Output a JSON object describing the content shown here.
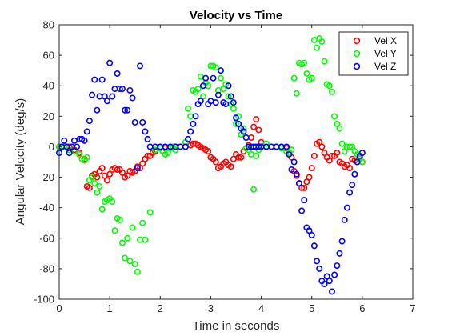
{
  "chart_data": {
    "type": "scatter",
    "title": "Velocity vs Time",
    "xlabel": "Time in seconds",
    "ylabel": "Angular Velocity (deg/s)",
    "xlim": [
      0,
      7
    ],
    "ylim": [
      -100,
      80
    ],
    "xticks": [
      0,
      1,
      2,
      3,
      4,
      5,
      6,
      7
    ],
    "yticks": [
      -100,
      -80,
      -60,
      -40,
      -20,
      0,
      20,
      40,
      60,
      80
    ],
    "grid": false,
    "legend_position": "top-right",
    "marker": "circle",
    "series": [
      {
        "name": "Vel X",
        "color": "#ff0000",
        "x": [
          0.0,
          0.1,
          0.2,
          0.3,
          0.4,
          0.5,
          0.55,
          0.6,
          0.65,
          0.7,
          0.75,
          0.8,
          0.85,
          0.9,
          0.95,
          1.0,
          1.05,
          1.1,
          1.15,
          1.2,
          1.25,
          1.3,
          1.35,
          1.4,
          1.45,
          1.5,
          1.55,
          1.6,
          1.65,
          1.7,
          1.75,
          1.8,
          1.85,
          1.9,
          2.0,
          2.1,
          2.2,
          2.3,
          2.4,
          2.5,
          2.6,
          2.65,
          2.7,
          2.75,
          2.8,
          2.85,
          2.9,
          2.95,
          3.0,
          3.05,
          3.1,
          3.15,
          3.2,
          3.25,
          3.3,
          3.35,
          3.4,
          3.45,
          3.5,
          3.55,
          3.6,
          3.65,
          3.7,
          3.75,
          3.8,
          3.85,
          3.9,
          3.95,
          4.0,
          4.1,
          4.2,
          4.3,
          4.4,
          4.5,
          4.55,
          4.6,
          4.65,
          4.7,
          4.75,
          4.8,
          4.85,
          4.9,
          4.95,
          5.0,
          5.05,
          5.1,
          5.15,
          5.2,
          5.25,
          5.3,
          5.35,
          5.4,
          5.45,
          5.5,
          5.55,
          5.6,
          5.65,
          5.7,
          5.75,
          5.8,
          5.85,
          5.9,
          5.95,
          6.0
        ],
        "y": [
          0,
          0,
          0,
          -2,
          -4,
          -8,
          -26,
          -27,
          -19,
          -18,
          -20,
          -16,
          -14,
          -19,
          -22,
          -18,
          -15,
          -14,
          -15,
          -15,
          -17,
          -20,
          -19,
          -16,
          -17,
          -16,
          -13,
          -14,
          -11,
          -8,
          -6,
          -6,
          -4,
          -3,
          -1,
          -1,
          0,
          0,
          0,
          0,
          1,
          2,
          2,
          1,
          0,
          -1,
          -2,
          -3,
          -7,
          -8,
          -10,
          -14,
          -13,
          -11,
          -10,
          -12,
          -13,
          -8,
          -5,
          -7,
          -7,
          -3,
          -1,
          1,
          6,
          13,
          18,
          11,
          3,
          0,
          0,
          0,
          0,
          -1,
          -4,
          -7,
          -16,
          -19,
          -24,
          -27,
          -27,
          -23,
          -20,
          -14,
          -6,
          2,
          3,
          0,
          -4,
          -7,
          -9,
          -6,
          -6,
          -4,
          -10,
          -11,
          -13,
          -12,
          -14,
          -8,
          -9,
          -10,
          -7,
          -10
        ]
      },
      {
        "name": "Vel Y",
        "color": "#00ff00",
        "x": [
          0.0,
          0.1,
          0.2,
          0.3,
          0.4,
          0.45,
          0.5,
          0.55,
          0.6,
          0.65,
          0.7,
          0.75,
          0.8,
          0.85,
          0.9,
          0.95,
          1.0,
          1.05,
          1.1,
          1.15,
          1.2,
          1.25,
          1.3,
          1.35,
          1.4,
          1.45,
          1.5,
          1.55,
          1.6,
          1.65,
          1.7,
          1.8,
          1.9,
          2.0,
          2.05,
          2.1,
          2.15,
          2.2,
          2.25,
          2.3,
          2.4,
          2.5,
          2.55,
          2.6,
          2.65,
          2.7,
          2.75,
          2.8,
          2.85,
          2.9,
          2.95,
          3.0,
          3.05,
          3.1,
          3.15,
          3.2,
          3.25,
          3.3,
          3.35,
          3.4,
          3.45,
          3.5,
          3.55,
          3.6,
          3.65,
          3.7,
          3.75,
          3.8,
          3.85,
          3.9,
          3.95,
          4.0,
          4.1,
          4.2,
          4.3,
          4.4,
          4.5,
          4.55,
          4.6,
          4.65,
          4.7,
          4.75,
          4.8,
          4.85,
          4.9,
          4.95,
          5.0,
          5.05,
          5.1,
          5.15,
          5.2,
          5.25,
          5.3,
          5.35,
          5.4,
          5.45,
          5.5,
          5.55,
          5.6,
          5.65,
          5.7,
          5.75,
          5.8,
          5.85,
          5.9,
          5.95,
          6.0
        ],
        "y": [
          0,
          0,
          -2,
          -3,
          -5,
          -8,
          -9,
          -7,
          -22,
          -20,
          -24,
          -30,
          -26,
          -41,
          -36,
          -35,
          -34,
          -36,
          -55,
          -47,
          -48,
          -63,
          -73,
          -60,
          -75,
          -53,
          -77,
          -82,
          -61,
          -50,
          -61,
          -43,
          -2,
          -1,
          -3,
          -5,
          -4,
          -1,
          0,
          -2,
          0,
          3,
          25,
          20,
          37,
          36,
          38,
          46,
          33,
          42,
          40,
          53,
          53,
          52,
          37,
          45,
          38,
          41,
          33,
          28,
          25,
          15,
          20,
          8,
          12,
          -1,
          -2,
          -5,
          -28,
          -6,
          -2,
          0,
          2,
          0,
          0,
          -1,
          -3,
          -4,
          -2,
          45,
          35,
          55,
          54,
          55,
          48,
          44,
          45,
          70,
          65,
          71,
          69,
          56,
          41,
          40,
          36,
          20,
          15,
          12,
          2,
          -3,
          0,
          0,
          0,
          -3,
          -5,
          -8,
          -10
        ]
      },
      {
        "name": "Vel Z",
        "color": "#0000ff",
        "x": [
          0.0,
          0.05,
          0.1,
          0.15,
          0.2,
          0.25,
          0.3,
          0.35,
          0.4,
          0.45,
          0.5,
          0.55,
          0.6,
          0.65,
          0.7,
          0.75,
          0.8,
          0.85,
          0.9,
          0.95,
          1.0,
          1.05,
          1.1,
          1.15,
          1.2,
          1.25,
          1.3,
          1.35,
          1.4,
          1.45,
          1.5,
          1.55,
          1.6,
          1.65,
          1.7,
          1.75,
          1.8,
          1.9,
          2.0,
          2.1,
          2.2,
          2.3,
          2.4,
          2.5,
          2.55,
          2.6,
          2.65,
          2.7,
          2.75,
          2.8,
          2.85,
          2.9,
          2.95,
          3.0,
          3.05,
          3.1,
          3.15,
          3.2,
          3.25,
          3.3,
          3.35,
          3.4,
          3.45,
          3.5,
          3.55,
          3.6,
          3.65,
          3.7,
          3.75,
          3.8,
          3.85,
          3.9,
          3.95,
          4.0,
          4.1,
          4.2,
          4.3,
          4.4,
          4.5,
          4.55,
          4.6,
          4.65,
          4.7,
          4.75,
          4.8,
          4.85,
          4.9,
          4.95,
          5.0,
          5.05,
          5.1,
          5.15,
          5.2,
          5.25,
          5.3,
          5.35,
          5.4,
          5.45,
          5.5,
          5.55,
          5.6,
          5.65,
          5.7,
          5.75,
          5.8,
          5.85,
          5.9,
          5.95,
          6.0
        ],
        "y": [
          -4,
          0,
          4,
          0,
          -4,
          0,
          4,
          0,
          5,
          5,
          4,
          10,
          17,
          34,
          44,
          24,
          33,
          44,
          33,
          30,
          55,
          33,
          38,
          48,
          38,
          38,
          24,
          24,
          37,
          32,
          16,
          -14,
          53,
          16,
          10,
          5,
          0,
          0,
          0,
          0,
          0,
          0,
          0,
          0,
          5,
          10,
          15,
          20,
          28,
          30,
          40,
          45,
          28,
          30,
          45,
          29,
          34,
          50,
          29,
          28,
          40,
          33,
          29,
          19,
          15,
          12,
          10,
          6,
          0,
          0,
          0,
          0,
          0,
          0,
          0,
          0,
          0,
          0,
          0,
          -5,
          -15,
          -10,
          -18,
          -24,
          -42,
          -35,
          -53,
          -55,
          -58,
          -65,
          -75,
          -80,
          -88,
          -90,
          -85,
          -88,
          -95,
          -84,
          -78,
          -70,
          -62,
          -48,
          -40,
          -30,
          -25,
          -18,
          -10,
          -6,
          -4
        ]
      }
    ]
  }
}
